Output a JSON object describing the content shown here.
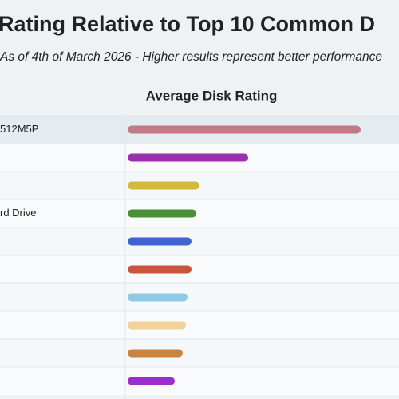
{
  "chart_data": {
    "type": "bar",
    "title": "Rating Relative to Top 10 Common D",
    "subtitle": "As of 4th of March 2026 - Higher results represent better performance",
    "xlabel": "Average Disk Rating",
    "categories": [
      "512M5P",
      null,
      null,
      "rd Drive",
      null,
      null,
      null,
      null,
      null,
      null
    ],
    "values": [
      292,
      151,
      90,
      86,
      80,
      80,
      75,
      73,
      69,
      59
    ],
    "colors": [
      "#c27a86",
      "#9b2fae",
      "#d4b93a",
      "#4a8f35",
      "#3f63d1",
      "#c9543e",
      "#8ecae6",
      "#f0d29a",
      "#c88540",
      "#9b30c8"
    ]
  }
}
